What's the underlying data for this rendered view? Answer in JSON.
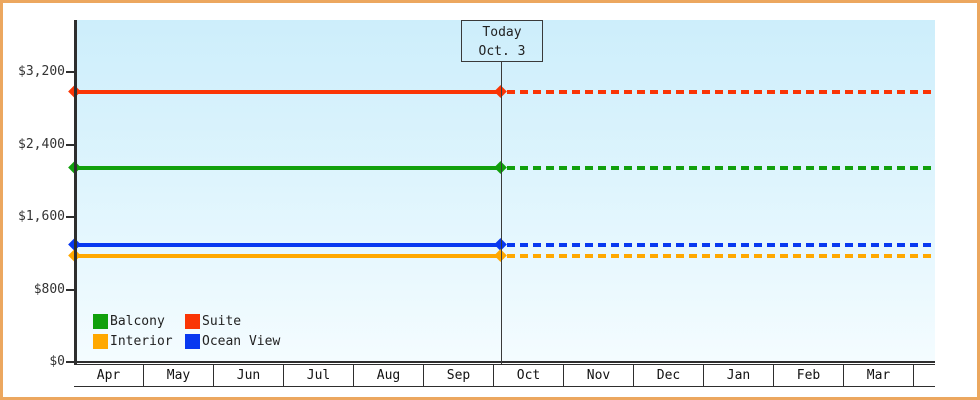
{
  "frame": {
    "border_color": "#eca75f",
    "axis_color": "#2e2e2e",
    "plot_bg_top": "#cdeefb",
    "plot_bg_bottom": "#f4fcff"
  },
  "chart_data": {
    "type": "line",
    "title": "",
    "xlabel": "",
    "ylabel": "",
    "categories": [
      "Apr",
      "May",
      "Jun",
      "Jul",
      "Aug",
      "Sep",
      "Oct",
      "Nov",
      "Dec",
      "Jan",
      "Feb",
      "Mar"
    ],
    "y_ticks": [
      0,
      800,
      1600,
      2400,
      3200
    ],
    "y_tick_labels": [
      "$0",
      "$800",
      "$1,600",
      "$2,400",
      "$3,200"
    ],
    "ylim": [
      0,
      3780
    ],
    "grid": false,
    "series": [
      {
        "name": "Suite",
        "color": "#fa3505",
        "value": 2980
      },
      {
        "name": "Balcony",
        "color": "#11a00c",
        "value": 2140
      },
      {
        "name": "Ocean View",
        "color": "#0838f0",
        "value": 1295
      },
      {
        "name": "Interior",
        "color": "#ffa800",
        "value": 1175
      }
    ],
    "line_style": {
      "solid_before_today": true,
      "dashed_after_today": true,
      "marker": "diamond"
    },
    "annotation": {
      "title": "Today",
      "subtitle": "Oct. 3",
      "month": "Oct",
      "month_index": 6,
      "fraction": 0.07
    },
    "legend": {
      "position": "bottom-left",
      "order": [
        "Balcony",
        "Suite",
        "Interior",
        "Ocean View"
      ]
    }
  }
}
